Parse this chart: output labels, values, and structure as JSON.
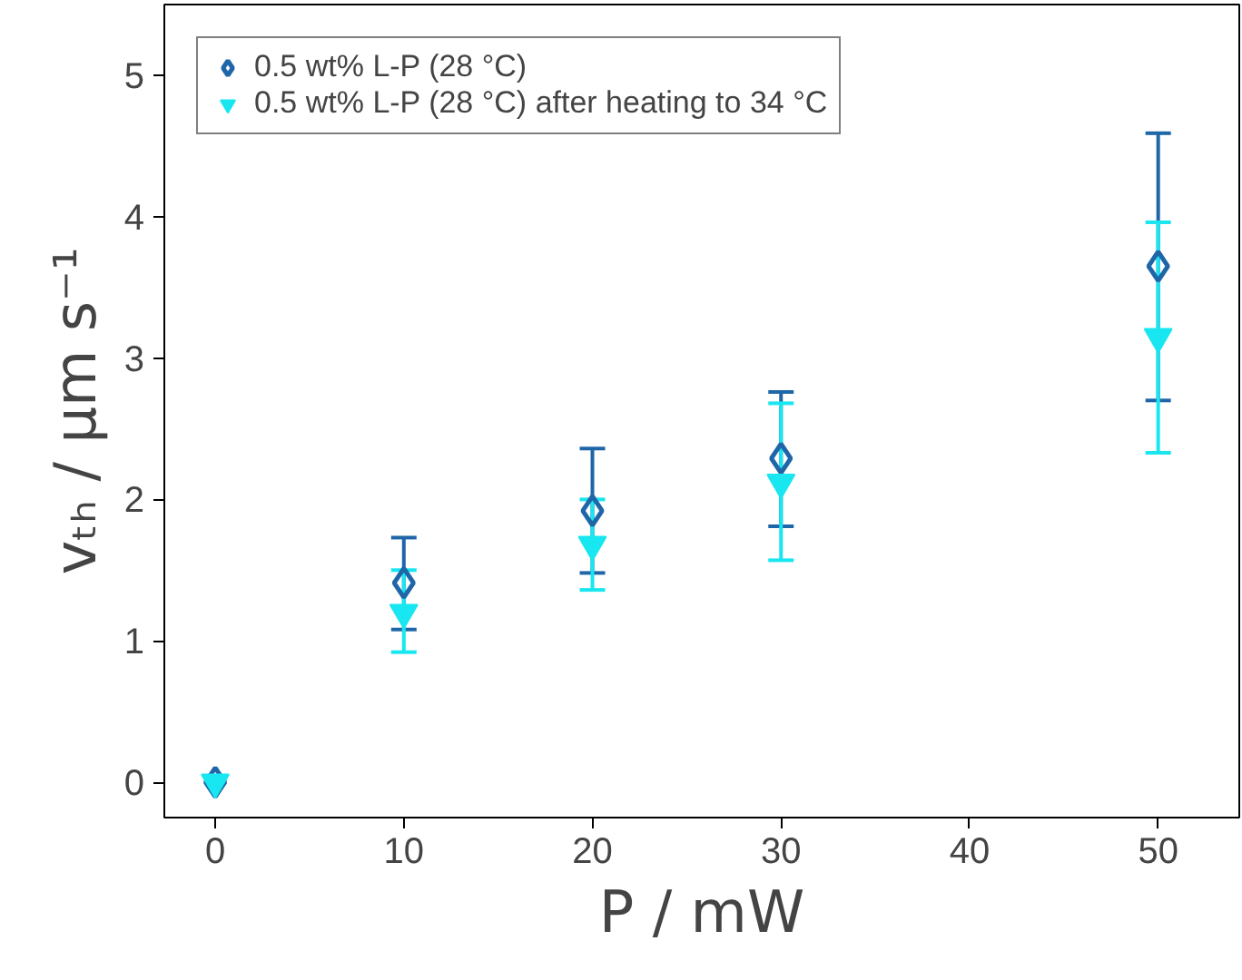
{
  "chart_data": {
    "type": "scatter",
    "xlabel": "P / mW",
    "ylabel": "vₜₕ / µm s⁻¹",
    "x": [
      0,
      10,
      20,
      30,
      50
    ],
    "series": [
      {
        "name": "0.5 wt% L-P (28 °C)",
        "color": "#1f66a8",
        "marker": "diamond",
        "values": [
          0,
          1.41,
          1.92,
          2.29,
          3.65
        ],
        "errors": [
          null,
          [
            1.08,
            1.73
          ],
          [
            1.48,
            2.36
          ],
          [
            1.81,
            2.76
          ],
          [
            2.7,
            4.59
          ]
        ]
      },
      {
        "name": "0.5 wt% L-P (28 °C) after heating to 34 °C",
        "color": "#18e6f0",
        "marker": "triangle",
        "values": [
          0,
          1.2,
          1.68,
          2.12,
          3.15
        ],
        "errors": [
          null,
          [
            0.92,
            1.5
          ],
          [
            1.36,
            2.0
          ],
          [
            1.57,
            2.68
          ],
          [
            2.33,
            3.96
          ]
        ]
      }
    ],
    "xlim": [
      -2.7,
      54.3
    ],
    "ylim": [
      -0.25,
      5.5
    ],
    "xticks": [
      0,
      10,
      20,
      30,
      40,
      50
    ],
    "yticks": [
      0,
      1,
      2,
      3,
      4,
      5
    ],
    "grid": false,
    "legend": "top left"
  }
}
